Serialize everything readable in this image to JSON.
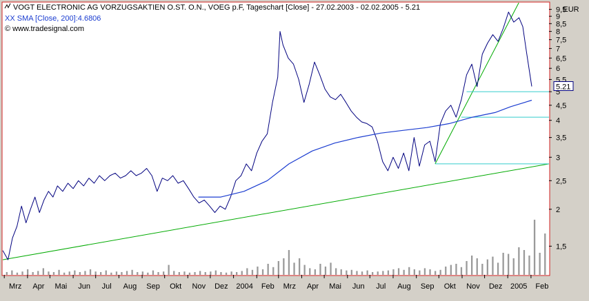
{
  "window": {
    "title_line": "VOGT ELECTRONIC AG VORZUGSAKTIEN O.ST. O.N., VOEG p.F, Tageschart [Close] - 27.02.2003 - 02.02.2005 - 5.21",
    "indicator_line": "XX SMA [Close, 200]:4.6806",
    "source_line": "© www.tradesignal.com",
    "currency": "EUR",
    "last_value_badge": "5.21"
  },
  "colors": {
    "price_line": "#00007f",
    "sma_line": "#1a3cd0",
    "trend_green": "#00aa00",
    "support_cyan": "#33cccc",
    "volume_bars": "#9a9a9a",
    "frame_red": "#d02020",
    "panel_bg": "#ffffff",
    "chrome_bg": "#d4d0c8"
  },
  "chart_data": {
    "type": "line",
    "y_scale": "log",
    "ylim": [
      1.2,
      10
    ],
    "y_ticks": [
      {
        "value": 1.5,
        "label": "1,5"
      },
      {
        "value": 2,
        "label": "2"
      },
      {
        "value": 2.5,
        "label": "2,5"
      },
      {
        "value": 3,
        "label": "3"
      },
      {
        "value": 3.5,
        "label": "3,5"
      },
      {
        "value": 4,
        "label": "4"
      },
      {
        "value": 4.5,
        "label": "4,5"
      },
      {
        "value": 5,
        "label": "5"
      },
      {
        "value": 5.5,
        "label": "5,5"
      },
      {
        "value": 6,
        "label": "6"
      },
      {
        "value": 6.5,
        "label": "6,5"
      },
      {
        "value": 7,
        "label": "7"
      },
      {
        "value": 7.5,
        "label": "7,5"
      },
      {
        "value": 8,
        "label": "8"
      },
      {
        "value": 8.5,
        "label": "8,5"
      },
      {
        "value": 9,
        "label": "9"
      },
      {
        "value": 9.5,
        "label": "9,5"
      }
    ],
    "xlim": [
      "2003-02-27",
      "2005-02-25"
    ],
    "x_ticks": [
      {
        "date": "2003-03-01",
        "label": "Mrz"
      },
      {
        "date": "2003-04-01",
        "label": "Apr"
      },
      {
        "date": "2003-05-01",
        "label": "Mai"
      },
      {
        "date": "2003-06-01",
        "label": "Jun"
      },
      {
        "date": "2003-07-01",
        "label": "Jul"
      },
      {
        "date": "2003-08-01",
        "label": "Aug"
      },
      {
        "date": "2003-09-01",
        "label": "Sep"
      },
      {
        "date": "2003-10-01",
        "label": "Okt"
      },
      {
        "date": "2003-11-01",
        "label": "Nov"
      },
      {
        "date": "2003-12-01",
        "label": "Dez"
      },
      {
        "date": "2004-01-01",
        "label": "2004"
      },
      {
        "date": "2004-02-01",
        "label": "Feb"
      },
      {
        "date": "2004-03-01",
        "label": "Mrz"
      },
      {
        "date": "2004-04-01",
        "label": "Apr"
      },
      {
        "date": "2004-05-01",
        "label": "Mai"
      },
      {
        "date": "2004-06-01",
        "label": "Jun"
      },
      {
        "date": "2004-07-01",
        "label": "Jul"
      },
      {
        "date": "2004-08-01",
        "label": "Aug"
      },
      {
        "date": "2004-09-01",
        "label": "Sep"
      },
      {
        "date": "2004-10-01",
        "label": "Okt"
      },
      {
        "date": "2004-11-01",
        "label": "Nov"
      },
      {
        "date": "2004-12-01",
        "label": "Dez"
      },
      {
        "date": "2005-01-01",
        "label": "2005"
      },
      {
        "date": "2005-02-01",
        "label": "Feb"
      }
    ],
    "series": [
      {
        "name": "VOGT ELECTRONIC AG VORZUGSAKTIEN O.ST. O.N.",
        "role": "price",
        "points": [
          [
            "2003-02-27",
            1.45
          ],
          [
            "2003-03-06",
            1.35
          ],
          [
            "2003-03-12",
            1.6
          ],
          [
            "2003-03-18",
            1.75
          ],
          [
            "2003-03-24",
            2.05
          ],
          [
            "2003-03-30",
            1.8
          ],
          [
            "2003-04-05",
            2.0
          ],
          [
            "2003-04-11",
            2.2
          ],
          [
            "2003-04-17",
            1.95
          ],
          [
            "2003-04-23",
            2.15
          ],
          [
            "2003-04-29",
            2.3
          ],
          [
            "2003-05-05",
            2.2
          ],
          [
            "2003-05-11",
            2.4
          ],
          [
            "2003-05-18",
            2.3
          ],
          [
            "2003-05-25",
            2.45
          ],
          [
            "2003-06-01",
            2.35
          ],
          [
            "2003-06-08",
            2.5
          ],
          [
            "2003-06-15",
            2.4
          ],
          [
            "2003-06-22",
            2.55
          ],
          [
            "2003-06-29",
            2.45
          ],
          [
            "2003-07-06",
            2.6
          ],
          [
            "2003-07-13",
            2.5
          ],
          [
            "2003-07-20",
            2.6
          ],
          [
            "2003-07-27",
            2.65
          ],
          [
            "2003-08-03",
            2.55
          ],
          [
            "2003-08-10",
            2.6
          ],
          [
            "2003-08-17",
            2.7
          ],
          [
            "2003-08-24",
            2.6
          ],
          [
            "2003-08-31",
            2.65
          ],
          [
            "2003-09-07",
            2.75
          ],
          [
            "2003-09-14",
            2.6
          ],
          [
            "2003-09-21",
            2.3
          ],
          [
            "2003-09-28",
            2.55
          ],
          [
            "2003-10-05",
            2.5
          ],
          [
            "2003-10-12",
            2.6
          ],
          [
            "2003-10-19",
            2.45
          ],
          [
            "2003-10-26",
            2.5
          ],
          [
            "2003-11-02",
            2.35
          ],
          [
            "2003-11-09",
            2.2
          ],
          [
            "2003-11-16",
            2.1
          ],
          [
            "2003-11-23",
            2.15
          ],
          [
            "2003-11-30",
            2.05
          ],
          [
            "2003-12-07",
            1.95
          ],
          [
            "2003-12-14",
            2.05
          ],
          [
            "2003-12-21",
            2.0
          ],
          [
            "2003-12-28",
            2.2
          ],
          [
            "2004-01-04",
            2.5
          ],
          [
            "2004-01-11",
            2.6
          ],
          [
            "2004-01-18",
            2.85
          ],
          [
            "2004-01-25",
            2.7
          ],
          [
            "2004-02-01",
            3.1
          ],
          [
            "2004-02-08",
            3.4
          ],
          [
            "2004-02-15",
            3.6
          ],
          [
            "2004-02-22",
            4.6
          ],
          [
            "2004-02-29",
            5.6
          ],
          [
            "2004-03-03",
            8.0
          ],
          [
            "2004-03-07",
            7.2
          ],
          [
            "2004-03-14",
            6.5
          ],
          [
            "2004-03-21",
            6.2
          ],
          [
            "2004-03-28",
            5.5
          ],
          [
            "2004-04-04",
            4.6
          ],
          [
            "2004-04-11",
            5.3
          ],
          [
            "2004-04-18",
            6.3
          ],
          [
            "2004-04-25",
            5.7
          ],
          [
            "2004-05-02",
            5.1
          ],
          [
            "2004-05-09",
            4.8
          ],
          [
            "2004-05-16",
            4.7
          ],
          [
            "2004-05-23",
            4.9
          ],
          [
            "2004-05-30",
            4.6
          ],
          [
            "2004-06-06",
            4.3
          ],
          [
            "2004-06-13",
            4.1
          ],
          [
            "2004-06-20",
            3.95
          ],
          [
            "2004-06-27",
            3.9
          ],
          [
            "2004-07-04",
            3.8
          ],
          [
            "2004-07-11",
            3.4
          ],
          [
            "2004-07-18",
            2.9
          ],
          [
            "2004-07-25",
            2.7
          ],
          [
            "2004-08-01",
            3.0
          ],
          [
            "2004-08-08",
            2.75
          ],
          [
            "2004-08-15",
            3.1
          ],
          [
            "2004-08-22",
            2.7
          ],
          [
            "2004-08-29",
            3.5
          ],
          [
            "2004-09-05",
            2.8
          ],
          [
            "2004-09-12",
            3.3
          ],
          [
            "2004-09-19",
            3.4
          ],
          [
            "2004-09-26",
            2.9
          ],
          [
            "2004-10-03",
            3.9
          ],
          [
            "2004-10-10",
            4.3
          ],
          [
            "2004-10-17",
            4.5
          ],
          [
            "2004-10-24",
            4.1
          ],
          [
            "2004-10-31",
            4.7
          ],
          [
            "2004-11-07",
            5.7
          ],
          [
            "2004-11-14",
            6.2
          ],
          [
            "2004-11-21",
            5.2
          ],
          [
            "2004-11-28",
            6.7
          ],
          [
            "2004-12-05",
            7.3
          ],
          [
            "2004-12-12",
            7.8
          ],
          [
            "2004-12-19",
            7.4
          ],
          [
            "2004-12-26",
            8.2
          ],
          [
            "2005-01-02",
            9.3
          ],
          [
            "2005-01-09",
            8.6
          ],
          [
            "2005-01-16",
            8.9
          ],
          [
            "2005-01-21",
            8.3
          ],
          [
            "2005-01-26",
            6.8
          ],
          [
            "2005-02-02",
            5.21
          ]
        ]
      },
      {
        "name": "XX SMA [Close, 200]",
        "role": "sma",
        "points": [
          [
            "2003-11-15",
            2.2
          ],
          [
            "2003-12-15",
            2.2
          ],
          [
            "2004-01-15",
            2.3
          ],
          [
            "2004-02-15",
            2.5
          ],
          [
            "2004-03-15",
            2.85
          ],
          [
            "2004-04-15",
            3.15
          ],
          [
            "2004-05-15",
            3.35
          ],
          [
            "2004-06-15",
            3.5
          ],
          [
            "2004-07-15",
            3.62
          ],
          [
            "2004-08-15",
            3.7
          ],
          [
            "2004-09-15",
            3.78
          ],
          [
            "2004-10-15",
            3.9
          ],
          [
            "2004-11-15",
            4.1
          ],
          [
            "2004-12-15",
            4.25
          ],
          [
            "2005-01-05",
            4.45
          ],
          [
            "2005-02-02",
            4.68
          ]
        ]
      }
    ],
    "trendlines": [
      {
        "kind": "trend",
        "color_key": "trend_green",
        "from": [
          "2003-02-27",
          1.35
        ],
        "to": [
          "2005-02-25",
          2.85
        ]
      },
      {
        "kind": "trend",
        "color_key": "trend_green",
        "from": [
          "2004-09-26",
          2.85
        ],
        "to": [
          "2005-01-20",
          10.5
        ]
      },
      {
        "kind": "level",
        "color_key": "support_cyan",
        "from": [
          "2004-09-26",
          2.85
        ],
        "to": [
          "2005-02-25",
          2.85
        ]
      },
      {
        "kind": "level",
        "color_key": "support_cyan",
        "from": [
          "2004-10-31",
          4.1
        ],
        "to": [
          "2005-02-25",
          4.1
        ]
      },
      {
        "kind": "level",
        "color_key": "support_cyan",
        "from": [
          "2004-11-07",
          5.0
        ],
        "to": [
          "2005-02-25",
          5.0
        ]
      }
    ],
    "volume": {
      "relative_heights": [
        0.05,
        0.08,
        0.04,
        0.06,
        0.1,
        0.05,
        0.07,
        0.12,
        0.06,
        0.05,
        0.09,
        0.04,
        0.06,
        0.08,
        0.05,
        0.07,
        0.1,
        0.06,
        0.05,
        0.08,
        0.04,
        0.06,
        0.05,
        0.07,
        0.09,
        0.05,
        0.06,
        0.04,
        0.08,
        0.05,
        0.06,
        0.18,
        0.07,
        0.05,
        0.06,
        0.04,
        0.05,
        0.07,
        0.05,
        0.06,
        0.08,
        0.05,
        0.04,
        0.06,
        0.05,
        0.07,
        0.12,
        0.09,
        0.15,
        0.1,
        0.2,
        0.14,
        0.25,
        0.3,
        0.45,
        0.22,
        0.3,
        0.18,
        0.12,
        0.1,
        0.2,
        0.15,
        0.22,
        0.12,
        0.1,
        0.08,
        0.09,
        0.07,
        0.06,
        0.08,
        0.05,
        0.06,
        0.07,
        0.08,
        0.1,
        0.12,
        0.09,
        0.14,
        0.1,
        0.08,
        0.12,
        0.1,
        0.07,
        0.09,
        0.15,
        0.18,
        0.2,
        0.14,
        0.25,
        0.35,
        0.3,
        0.2,
        0.28,
        0.33,
        0.22,
        0.4,
        0.38,
        0.3,
        0.5,
        0.45,
        0.35,
        1.0,
        0.4,
        0.75
      ]
    }
  }
}
